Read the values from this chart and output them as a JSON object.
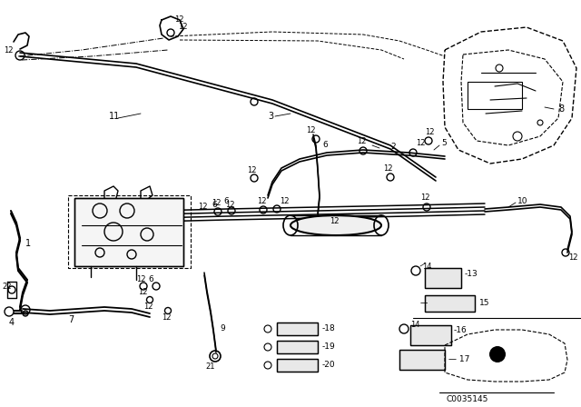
{
  "bg_color": "#ffffff",
  "line_color": "#000000",
  "fig_width": 6.4,
  "fig_height": 4.48,
  "dpi": 100
}
